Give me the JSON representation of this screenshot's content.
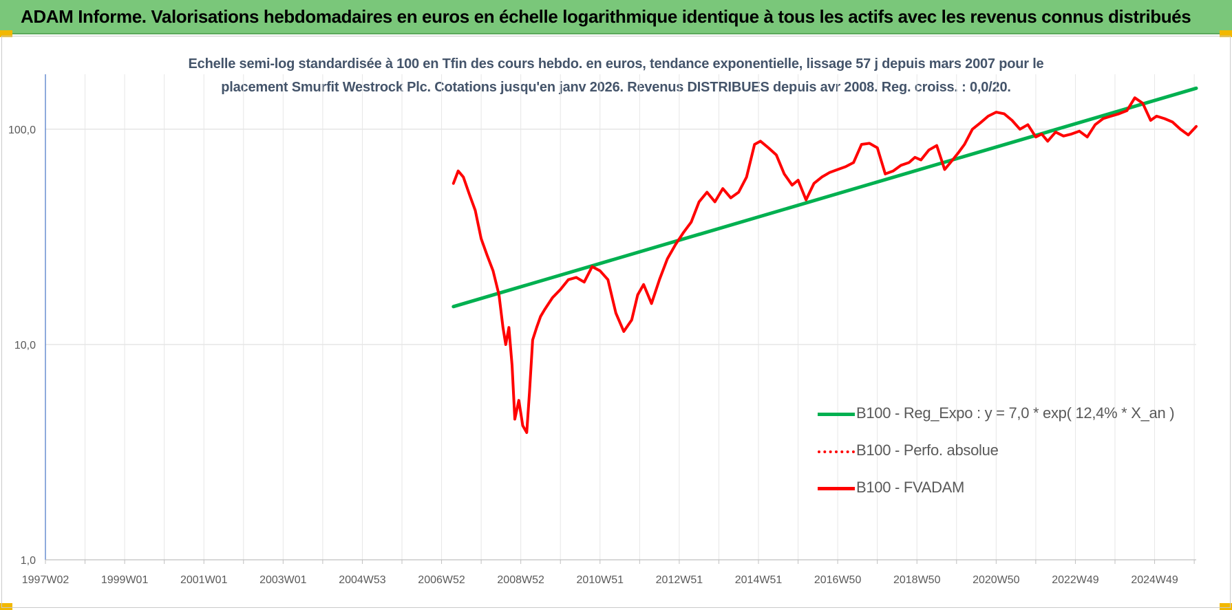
{
  "header": {
    "title": "ADAM Informe. Valorisations hebdomadaires en euros en échelle logarithmique identique à tous les actifs avec les revenus connus distribués"
  },
  "chart_data": {
    "type": "line",
    "title_line1": "Echelle semi-log standardisée à 100 en Tfin des cours hebdo. en euros, tendance exponentielle, lissage 57 j depuis mars 2007 pour le",
    "title_line2": "placement Smurfit Westrock Plc. Cotations jusqu'en janv 2026. Revenus DISTRIBUES depuis avr 2008. Reg. croiss. : 0,0/20.",
    "y_scale": "log",
    "ylim": [
      1,
      180
    ],
    "xlim": [
      1997.0,
      2026.05
    ],
    "grid": true,
    "legend_position": "bottom-right",
    "y_ticks": [
      {
        "value": 1,
        "label": "1,0"
      },
      {
        "value": 10,
        "label": "10,0"
      },
      {
        "value": 100,
        "label": "100,0"
      }
    ],
    "x_ticks": [
      {
        "value": 1997.0,
        "label": "1997W02"
      },
      {
        "value": 1999.0,
        "label": "1999W01"
      },
      {
        "value": 2001.0,
        "label": "2001W01"
      },
      {
        "value": 2003.0,
        "label": "2003W01"
      },
      {
        "value": 2005.0,
        "label": "2004W53"
      },
      {
        "value": 2007.0,
        "label": "2006W52"
      },
      {
        "value": 2009.0,
        "label": "2008W52"
      },
      {
        "value": 2011.0,
        "label": "2010W51"
      },
      {
        "value": 2013.0,
        "label": "2012W51"
      },
      {
        "value": 2015.0,
        "label": "2014W51"
      },
      {
        "value": 2017.0,
        "label": "2016W50"
      },
      {
        "value": 2019.0,
        "label": "2018W50"
      },
      {
        "value": 2021.0,
        "label": "2020W50"
      },
      {
        "value": 2023.0,
        "label": "2022W49"
      },
      {
        "value": 2025.0,
        "label": "2024W49"
      }
    ],
    "series": [
      {
        "name": "B100 - Reg_Expo : y = 7,0 * exp( 12,4% *  X_an )",
        "color": "#00b050",
        "style": "solid",
        "x": [
          2007.3,
          2026.05
        ],
        "y": [
          15,
          155
        ]
      },
      {
        "name": "B100 - Perfo. absolue",
        "color": "#ff0000",
        "style": "dotted",
        "x": [],
        "y": []
      },
      {
        "name": "B100 - FVADAM",
        "color": "#ff0000",
        "style": "solid",
        "x": [
          2007.3,
          2007.42,
          2007.55,
          2007.7,
          2007.85,
          2008.0,
          2008.15,
          2008.3,
          2008.45,
          2008.55,
          2008.62,
          2008.7,
          2008.78,
          2008.85,
          2008.95,
          2009.05,
          2009.15,
          2009.22,
          2009.3,
          2009.4,
          2009.5,
          2009.6,
          2009.8,
          2010.0,
          2010.2,
          2010.4,
          2010.6,
          2010.8,
          2011.0,
          2011.2,
          2011.4,
          2011.6,
          2011.8,
          2011.95,
          2012.1,
          2012.3,
          2012.5,
          2012.7,
          2012.9,
          2013.1,
          2013.3,
          2013.5,
          2013.7,
          2013.9,
          2014.1,
          2014.3,
          2014.5,
          2014.7,
          2014.9,
          2015.05,
          2015.25,
          2015.45,
          2015.65,
          2015.85,
          2016.0,
          2016.2,
          2016.4,
          2016.6,
          2016.8,
          2017.0,
          2017.2,
          2017.4,
          2017.6,
          2017.8,
          2018.0,
          2018.2,
          2018.4,
          2018.6,
          2018.8,
          2018.95,
          2019.1,
          2019.3,
          2019.5,
          2019.7,
          2019.9,
          2020.05,
          2020.2,
          2020.4,
          2020.6,
          2020.8,
          2021.0,
          2021.2,
          2021.4,
          2021.6,
          2021.8,
          2022.0,
          2022.15,
          2022.3,
          2022.5,
          2022.7,
          2022.9,
          2023.1,
          2023.3,
          2023.5,
          2023.7,
          2023.9,
          2024.1,
          2024.3,
          2024.5,
          2024.7,
          2024.9,
          2025.05,
          2025.25,
          2025.45,
          2025.65,
          2025.85,
          2026.05
        ],
        "y": [
          56,
          64,
          60,
          50,
          42,
          31,
          26,
          22,
          17,
          12,
          10,
          12,
          8,
          4.5,
          5.5,
          4.2,
          3.9,
          6,
          10.5,
          12,
          13.5,
          14.5,
          16.5,
          18,
          20,
          20.5,
          19.5,
          23,
          22,
          20,
          14,
          11.5,
          13,
          17,
          19,
          15.5,
          20,
          25,
          29,
          33,
          37,
          46,
          51,
          46,
          53,
          48,
          51,
          60,
          85,
          88,
          82,
          76,
          62,
          55,
          58,
          47,
          56,
          60,
          63,
          65,
          67,
          70,
          85,
          86,
          82,
          62,
          64,
          68,
          70,
          74,
          72,
          80,
          84,
          65,
          72,
          78,
          85,
          100,
          107,
          115,
          120,
          118,
          110,
          100,
          105,
          92,
          95,
          88,
          97,
          93,
          95,
          98,
          92,
          105,
          112,
          115,
          118,
          122,
          140,
          132,
          110,
          115,
          112,
          108,
          100,
          94,
          103
        ]
      }
    ]
  }
}
